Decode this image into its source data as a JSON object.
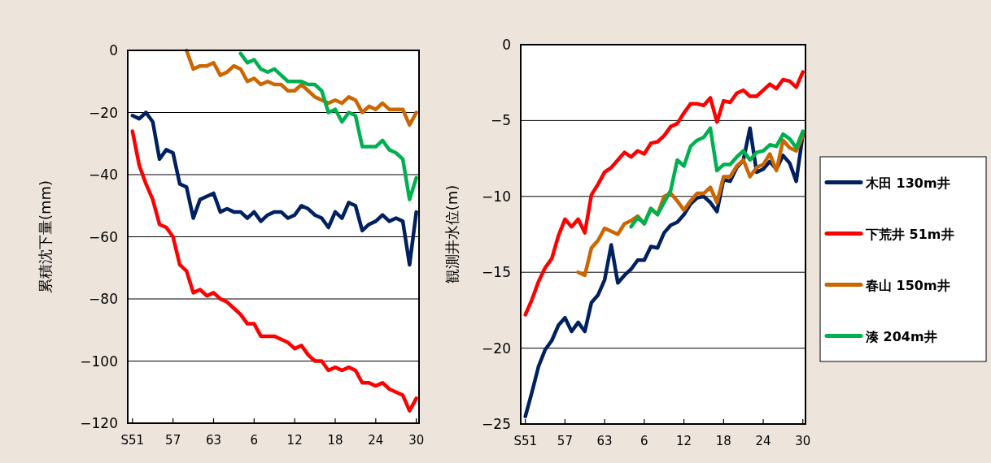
{
  "chart_data": [
    {
      "type": "line",
      "ylabel": "累積沈下量(mm)",
      "categories": [
        "S51",
        null,
        null,
        null,
        null,
        null,
        "57",
        null,
        null,
        null,
        null,
        null,
        "63",
        null,
        null,
        null,
        null,
        null,
        "6",
        null,
        null,
        null,
        null,
        null,
        "12",
        null,
        null,
        null,
        null,
        null,
        "18",
        null,
        null,
        null,
        null,
        null,
        "24",
        null,
        null,
        null,
        null,
        null,
        "30"
      ],
      "ylim": [
        -120,
        0
      ],
      "yticks": [
        -120,
        -100,
        -80,
        -60,
        -40,
        -20,
        0
      ],
      "grid": "y",
      "line_style": "solid",
      "series": [
        {
          "color": "#002060",
          "values": [
            -21,
            -22,
            -20,
            -23,
            -35,
            -32,
            -33,
            -43,
            -44,
            -54,
            -48,
            -47,
            -46,
            -52,
            -51,
            -52,
            -52,
            -54,
            -52,
            -55,
            -53,
            -52,
            -52,
            -54,
            -53,
            -50,
            -51,
            -53,
            -54,
            -57,
            -52,
            -54,
            -49,
            -50,
            -58,
            -56,
            -55,
            -53,
            -55,
            -54,
            -55,
            -69,
            -52
          ]
        },
        {
          "color": "#ff0000",
          "values": [
            -26,
            -37,
            -43,
            -48,
            -56,
            -57,
            -60,
            -69,
            -71,
            -78,
            -77,
            -79,
            -78,
            -80,
            -81,
            -83,
            -85,
            -88,
            -88,
            -92,
            -92,
            -92,
            -93,
            -94,
            -96,
            -95,
            -98,
            -100,
            -100,
            -103,
            -102,
            -103,
            -102,
            -103,
            -107,
            -107,
            -108,
            -107,
            -109,
            -110,
            -111,
            -116,
            -112
          ]
        },
        {
          "color": "#cc6600",
          "values": [
            null,
            null,
            null,
            null,
            null,
            null,
            null,
            null,
            0,
            -6,
            -5,
            -5,
            -4,
            -8,
            -7,
            -5,
            -6,
            -10,
            -9,
            -11,
            -10,
            -11,
            -11,
            -13,
            -13,
            -11,
            -13,
            -15,
            -16,
            -17,
            -16,
            -17,
            -15,
            -16,
            -20,
            -18,
            -19,
            -17,
            -19,
            -19,
            -19,
            -24,
            -20
          ]
        },
        {
          "color": "#00b050",
          "values": [
            null,
            null,
            null,
            null,
            null,
            null,
            null,
            null,
            null,
            null,
            null,
            null,
            null,
            null,
            null,
            null,
            -1,
            -4,
            -3,
            -6,
            -7,
            -6,
            -8,
            -10,
            -10,
            -10,
            -11,
            -11,
            -13,
            -20,
            -19,
            -23,
            -20,
            -21,
            -31,
            -31,
            -31,
            -29,
            -32,
            -33,
            -35,
            -48,
            -41
          ]
        }
      ]
    },
    {
      "type": "line",
      "ylabel": "観測井水位(m)",
      "categories": [
        "S51",
        null,
        null,
        null,
        null,
        null,
        "57",
        null,
        null,
        null,
        null,
        null,
        "63",
        null,
        null,
        null,
        null,
        null,
        "6",
        null,
        null,
        null,
        null,
        null,
        "12",
        null,
        null,
        null,
        null,
        null,
        "18",
        null,
        null,
        null,
        null,
        null,
        "24",
        null,
        null,
        null,
        null,
        null,
        "30"
      ],
      "ylim": [
        -25,
        0
      ],
      "yticks": [
        -25,
        -20,
        -15,
        -10,
        -5,
        0
      ],
      "grid": "y",
      "legend": "right",
      "line_style": "solid",
      "series": [
        {
          "name": "木田 130m井",
          "color": "#002060",
          "values": [
            -24.5,
            -22.9,
            -21.2,
            -20.1,
            -19.5,
            -18.5,
            -18.0,
            -18.9,
            -18.3,
            -18.9,
            -17.0,
            -16.5,
            -15.5,
            -13.2,
            -15.7,
            -15.2,
            -14.8,
            -14.2,
            -14.2,
            -13.3,
            -13.4,
            -12.4,
            -11.9,
            -11.7,
            -11.2,
            -10.5,
            -10.1,
            -10.0,
            -10.4,
            -11.0,
            -8.9,
            -9.0,
            -8.1,
            -7.6,
            -5.5,
            -8.4,
            -8.2,
            -7.7,
            -8.2,
            -7.3,
            -7.8,
            -9.0,
            -5.9
          ]
        },
        {
          "name": "下荒井 51m井",
          "color": "#ff0000",
          "values": [
            -17.8,
            -16.8,
            -15.6,
            -14.7,
            -14.1,
            -12.6,
            -11.5,
            -12.0,
            -11.5,
            -12.4,
            -9.9,
            -9.2,
            -8.4,
            -8.1,
            -7.6,
            -7.1,
            -7.4,
            -7.0,
            -7.2,
            -6.5,
            -6.4,
            -6.0,
            -5.4,
            -5.2,
            -4.5,
            -3.9,
            -3.9,
            -4.0,
            -3.5,
            -5.1,
            -3.7,
            -3.8,
            -3.2,
            -3.0,
            -3.4,
            -3.4,
            -3.0,
            -2.6,
            -2.9,
            -2.3,
            -2.4,
            -2.8,
            -1.8
          ]
        },
        {
          "name": "春山 150m井",
          "color": "#cc6600",
          "values": [
            null,
            null,
            null,
            null,
            null,
            null,
            null,
            null,
            -15.0,
            -15.2,
            -13.4,
            -12.9,
            -12.1,
            -12.3,
            -12.5,
            -11.8,
            -11.6,
            -11.3,
            -11.8,
            -10.8,
            -11.2,
            -10.0,
            -9.8,
            -10.3,
            -10.9,
            -10.3,
            -9.8,
            -9.8,
            -9.4,
            -10.4,
            -8.7,
            -8.7,
            -8.0,
            -7.6,
            -8.7,
            -8.1,
            -7.9,
            -7.2,
            -8.3,
            -6.3,
            -6.8,
            -7.0,
            -6.0
          ]
        },
        {
          "name": "湊 204m井",
          "color": "#00b050",
          "values": [
            null,
            null,
            null,
            null,
            null,
            null,
            null,
            null,
            null,
            null,
            null,
            null,
            null,
            null,
            null,
            null,
            -12.0,
            -11.4,
            -11.8,
            -10.8,
            -11.2,
            -10.4,
            -9.6,
            -7.6,
            -8.0,
            -6.7,
            -6.3,
            -6.1,
            -5.5,
            -8.3,
            -7.9,
            -7.9,
            -7.4,
            -7.0,
            -7.6,
            -7.1,
            -7.0,
            -6.6,
            -6.7,
            -5.9,
            -6.2,
            -6.8,
            -5.7
          ]
        }
      ]
    }
  ]
}
